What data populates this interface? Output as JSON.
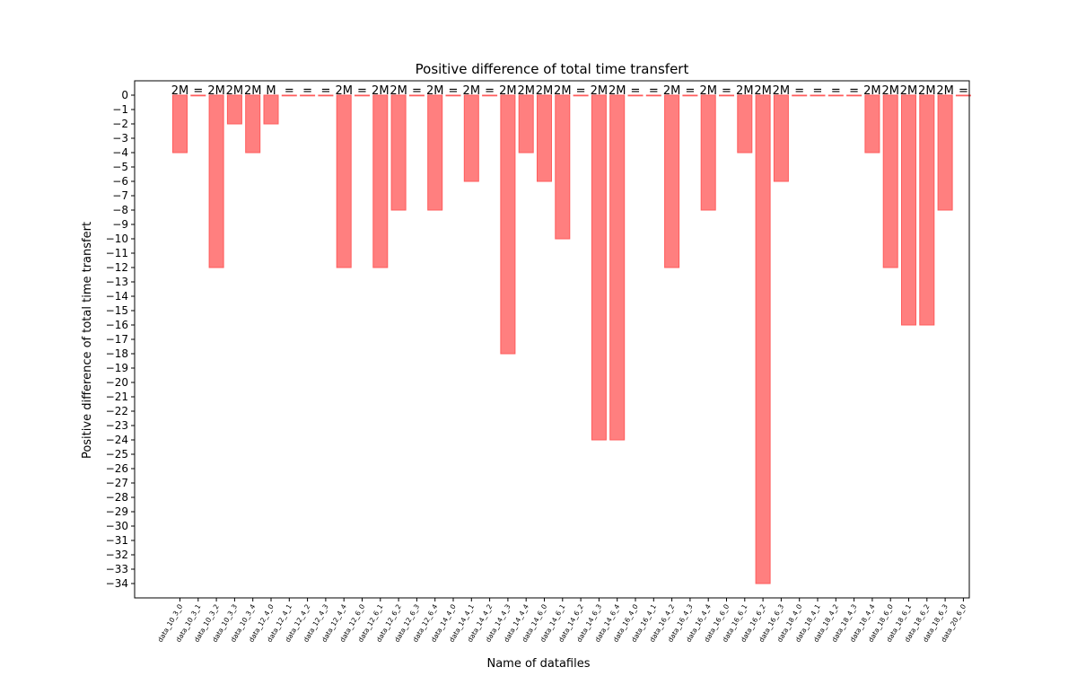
{
  "chart_data": {
    "type": "bar",
    "title": "Positive difference of total time transfert",
    "xlabel": "Name of datafiles",
    "ylabel": "Positive difference of total time transfert",
    "ylim": [
      -35,
      1
    ],
    "y_ticks": [
      0,
      -1,
      -2,
      -3,
      -4,
      -5,
      -6,
      -7,
      -8,
      -9,
      -10,
      -11,
      -12,
      -13,
      -14,
      -15,
      -16,
      -17,
      -18,
      -19,
      -20,
      -21,
      -22,
      -23,
      -24,
      -25,
      -26,
      -27,
      -28,
      -29,
      -30,
      -31,
      -32,
      -33,
      -34
    ],
    "grid": false,
    "legend": "none",
    "bar_color": "#ff7f7f",
    "bar_edge_color": "#ff5c5c",
    "categories": [
      "data_10_3_0",
      "data_10_3_1",
      "data_10_3_2",
      "data_10_3_3",
      "data_10_3_4",
      "data_12_4_0",
      "data_12_4_1",
      "data_12_4_2",
      "data_12_4_3",
      "data_12_4_4",
      "data_12_6_0",
      "data_12_6_1",
      "data_12_6_2",
      "data_12_6_3",
      "data_12_6_4",
      "data_14_4_0",
      "data_14_4_1",
      "data_14_4_2",
      "data_14_4_3",
      "data_14_4_4",
      "data_14_6_0",
      "data_14_6_1",
      "data_14_6_2",
      "data_14_6_3",
      "data_14_6_4",
      "data_16_4_0",
      "data_16_4_1",
      "data_16_4_2",
      "data_16_4_3",
      "data_16_4_4",
      "data_16_6_0",
      "data_16_6_1",
      "data_16_6_2",
      "data_16_6_3",
      "data_18_4_0",
      "data_18_4_1",
      "data_18_4_2",
      "data_18_4_3",
      "data_18_4_4",
      "data_18_6_0",
      "data_18_6_1",
      "data_18_6_2",
      "data_18_6_3",
      "data_20_6_0"
    ],
    "values": [
      -4,
      0,
      -12,
      -2,
      -4,
      -2,
      0,
      0,
      0,
      -12,
      0,
      -12,
      -8,
      0,
      -8,
      0,
      -6,
      0,
      -18,
      -4,
      -6,
      -10,
      0,
      -24,
      -24,
      0,
      0,
      -12,
      0,
      -8,
      0,
      -4,
      -34,
      -6,
      0,
      0,
      0,
      0,
      -4,
      -12,
      -16,
      -16,
      -8,
      0
    ],
    "bar_annotations": [
      "2M",
      "=",
      "2M",
      "2M",
      "2M",
      "M",
      "=",
      "=",
      "=",
      "2M",
      "=",
      "2M",
      "2M",
      "=",
      "2M",
      "=",
      "2M",
      "=",
      "2M",
      "2M",
      "2M",
      "2M",
      "=",
      "2M",
      "2M",
      "=",
      "=",
      "2M",
      "=",
      "2M",
      "=",
      "2M",
      "2M",
      "2M",
      "=",
      "=",
      "=",
      "=",
      "2M",
      "2M",
      "2M",
      "2M",
      "2M",
      "="
    ]
  }
}
